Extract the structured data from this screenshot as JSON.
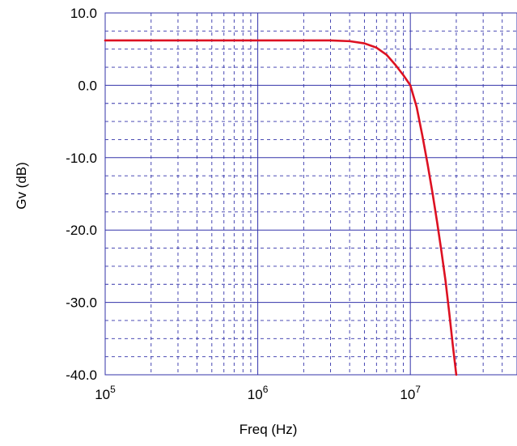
{
  "chart_data": {
    "type": "line",
    "xlabel": "Freq (Hz)",
    "ylabel": "Gv (dB)",
    "x_scale": "log",
    "xlim": [
      100000,
      50000000
    ],
    "ylim": [
      -40,
      10
    ],
    "x_ticks": [
      {
        "value": 100000,
        "base": "10",
        "exp": "5"
      },
      {
        "value": 1000000,
        "base": "10",
        "exp": "6"
      },
      {
        "value": 10000000,
        "base": "10",
        "exp": "7"
      }
    ],
    "y_ticks": [
      {
        "value": 10,
        "label": "10.0"
      },
      {
        "value": 0,
        "label": "0.0"
      },
      {
        "value": -10,
        "label": "-10.0"
      },
      {
        "value": -20,
        "label": "-20.0"
      },
      {
        "value": -30,
        "label": "-30.0"
      },
      {
        "value": -40,
        "label": "-40.0"
      }
    ],
    "grid": true,
    "colors": {
      "grid": "#3333aa",
      "line": "#dd1122",
      "frame": "#3333aa"
    },
    "series": [
      {
        "x": [
          100000,
          1000000,
          3000000,
          4000000,
          5000000,
          6000000,
          7000000,
          8000000,
          9000000,
          10000000,
          11000000,
          12000000,
          13000000,
          14000000,
          15000000,
          16000000,
          17000000,
          18000000,
          19000000,
          20000000
        ],
        "y": [
          6.2,
          6.2,
          6.2,
          6.1,
          5.8,
          5.2,
          4.2,
          2.8,
          1.4,
          0.0,
          -3.0,
          -7.0,
          -11.0,
          -15.0,
          -19.0,
          -23.0,
          -27.0,
          -31.5,
          -36.0,
          -40.0
        ]
      }
    ]
  }
}
